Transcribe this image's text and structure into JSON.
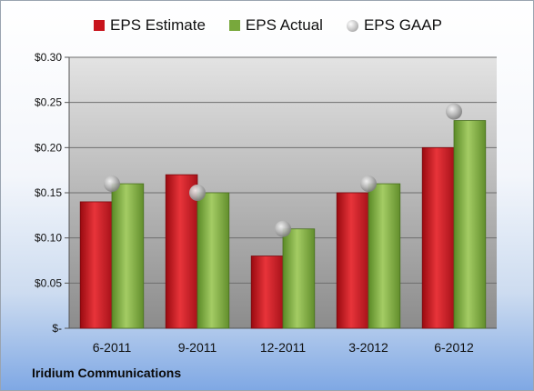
{
  "company": "Iridium Communications",
  "legend": {
    "estimate": "EPS Estimate",
    "actual": "EPS Actual",
    "gaap": "EPS GAAP"
  },
  "colors": {
    "estimate": "#c8141c",
    "actual": "#78a83c",
    "gaap": "#b8b8b8"
  },
  "chart_data": {
    "type": "bar",
    "categories": [
      "6-2011",
      "9-2011",
      "12-2011",
      "3-2012",
      "6-2012"
    ],
    "series": [
      {
        "name": "EPS Estimate",
        "type": "bar",
        "values": [
          0.14,
          0.17,
          0.08,
          0.15,
          0.2
        ]
      },
      {
        "name": "EPS Actual",
        "type": "bar",
        "values": [
          0.16,
          0.15,
          0.11,
          0.16,
          0.23
        ]
      },
      {
        "name": "EPS GAAP",
        "type": "scatter",
        "values": [
          0.16,
          0.15,
          0.11,
          0.16,
          0.24
        ]
      }
    ],
    "ylim": [
      0,
      0.3
    ],
    "yticks": [
      0,
      0.05,
      0.1,
      0.15,
      0.2,
      0.25,
      0.3
    ],
    "ytick_labels": [
      "$-",
      "$0.05",
      "$0.10",
      "$0.15",
      "$0.20",
      "$0.25",
      "$0.30"
    ],
    "grid": true,
    "legend_position": "top"
  }
}
